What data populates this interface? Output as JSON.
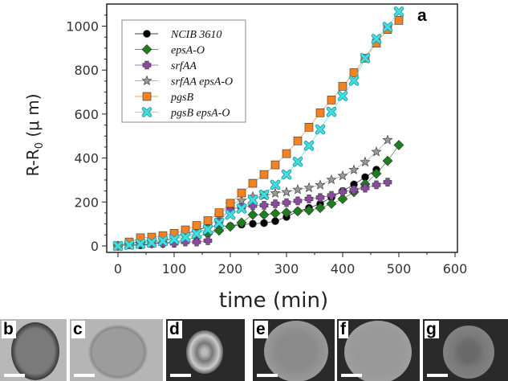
{
  "chart_data": {
    "type": "line",
    "panel_label": "a",
    "xlabel": "time (min)",
    "ylabel": {
      "main": "R-R",
      "sub": "0",
      "unit": " (μ m)"
    },
    "xlim": [
      -10,
      600
    ],
    "ylim": [
      -25,
      1100
    ],
    "xticks": [
      0,
      100,
      200,
      300,
      400,
      500,
      600
    ],
    "yticks": [
      0,
      200,
      400,
      600,
      800,
      1000
    ],
    "grid": false,
    "legend_position": "top-left",
    "series": [
      {
        "name": "NCIB 3610",
        "marker": "circle",
        "color": "#000000",
        "x": [
          0,
          20,
          40,
          60,
          80,
          100,
          120,
          140,
          160,
          180,
          200,
          220,
          240,
          260,
          280,
          300,
          320,
          340,
          360,
          380,
          400,
          420,
          440,
          460
        ],
        "y": [
          0,
          5,
          3,
          8,
          18,
          42,
          55,
          70,
          88,
          91,
          91,
          97,
          101,
          104,
          113,
          132,
          158,
          173,
          192,
          221,
          250,
          280,
          313,
          347
        ]
      },
      {
        "name": "epsA-O",
        "marker": "diamond",
        "color": "#1e7d1e",
        "x": [
          0,
          20,
          40,
          60,
          80,
          100,
          120,
          140,
          160,
          180,
          200,
          220,
          240,
          260,
          280,
          300,
          320,
          340,
          360,
          380,
          400,
          420,
          440,
          460,
          480,
          500
        ],
        "y": [
          0,
          12,
          18,
          25,
          12,
          18,
          27,
          40,
          55,
          70,
          88,
          106,
          142,
          142,
          148,
          152,
          158,
          162,
          173,
          192,
          214,
          245,
          281,
          329,
          387,
          459
        ]
      },
      {
        "name": "srfAA",
        "marker": "plus",
        "color": "#8a4a9e",
        "x": [
          0,
          20,
          40,
          60,
          80,
          100,
          120,
          140,
          160,
          180,
          200,
          220,
          240,
          260,
          280,
          300,
          320,
          340,
          360,
          380,
          400,
          420,
          440,
          460,
          480
        ],
        "y": [
          0,
          5,
          10,
          12,
          12,
          12,
          18,
          18,
          24,
          113,
          168,
          177,
          183,
          185,
          192,
          197,
          205,
          214,
          220,
          230,
          247,
          255,
          263,
          278,
          290
        ]
      },
      {
        "name": "srfAA epsA-O",
        "marker": "star",
        "color": "#9a9a9a",
        "x": [
          0,
          20,
          40,
          60,
          80,
          100,
          120,
          140,
          160,
          180,
          200,
          220,
          240,
          260,
          280,
          300,
          320,
          340,
          360,
          380,
          400,
          420,
          440,
          460,
          480
        ],
        "y": [
          0,
          5,
          10,
          20,
          25,
          35,
          45,
          60,
          80,
          139,
          190,
          206,
          224,
          228,
          240,
          245,
          256,
          265,
          277,
          301,
          319,
          346,
          382,
          428,
          482
        ]
      },
      {
        "name": "pgsB",
        "marker": "square",
        "color": "#f28322",
        "x": [
          0,
          20,
          40,
          60,
          80,
          100,
          120,
          140,
          160,
          180,
          200,
          220,
          240,
          260,
          280,
          300,
          320,
          340,
          360,
          380,
          400,
          420,
          440,
          460,
          480,
          500
        ],
        "y": [
          0,
          18,
          37,
          40,
          47,
          57,
          73,
          93,
          115,
          151,
          194,
          241,
          285,
          325,
          369,
          420,
          478,
          540,
          606,
          664,
          726,
          788,
          854,
          923,
          985,
          1026
        ]
      },
      {
        "name": "pgsB epsA-O",
        "marker": "cross",
        "color": "#3fe0e0",
        "x": [
          0,
          20,
          40,
          60,
          80,
          100,
          120,
          140,
          160,
          180,
          200,
          220,
          240,
          260,
          280,
          300,
          320,
          340,
          360,
          380,
          400,
          420,
          440,
          460,
          480,
          500
        ],
        "y": [
          0,
          5,
          10,
          15,
          22,
          30,
          40,
          55,
          75,
          105,
          142,
          170,
          209,
          233,
          278,
          325,
          383,
          456,
          530,
          610,
          682,
          752,
          854,
          942,
          996,
          1066
        ]
      }
    ]
  },
  "photo_panels": [
    {
      "label": "b"
    },
    {
      "label": "c"
    },
    {
      "label": "d"
    },
    {
      "label": "e"
    },
    {
      "label": "f"
    },
    {
      "label": "g"
    }
  ]
}
